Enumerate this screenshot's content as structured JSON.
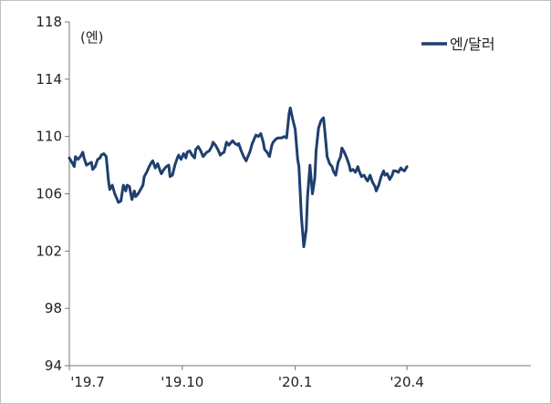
{
  "chart_data": {
    "type": "line",
    "title": "",
    "unit_label": "(엔)",
    "xlabel": "",
    "ylabel": "",
    "ylim": [
      94,
      118
    ],
    "y_ticks": [
      "118",
      "114",
      "110",
      "106",
      "102",
      "98",
      "94"
    ],
    "x_ticks": [
      "'19.7",
      "'19.10",
      "'20.1",
      "'20.4"
    ],
    "x_range_days": [
      0,
      376
    ],
    "x_tick_days": [
      0,
      92,
      184,
      275
    ],
    "legend_position": "top-right",
    "grid": false,
    "series": [
      {
        "name": "엔/달러",
        "color": "#1f3f6e",
        "points": [
          [
            0,
            108.5
          ],
          [
            2,
            108.2
          ],
          [
            4,
            107.9
          ],
          [
            5,
            108.6
          ],
          [
            7,
            108.4
          ],
          [
            9,
            108.6
          ],
          [
            11,
            108.9
          ],
          [
            12,
            108.5
          ],
          [
            14,
            108.0
          ],
          [
            16,
            108.1
          ],
          [
            18,
            108.2
          ],
          [
            19,
            107.7
          ],
          [
            21,
            107.9
          ],
          [
            23,
            108.4
          ],
          [
            25,
            108.5
          ],
          [
            26,
            108.7
          ],
          [
            28,
            108.8
          ],
          [
            30,
            108.6
          ],
          [
            32,
            106.8
          ],
          [
            33,
            106.3
          ],
          [
            35,
            106.6
          ],
          [
            37,
            106.0
          ],
          [
            39,
            105.6
          ],
          [
            40,
            105.4
          ],
          [
            42,
            105.5
          ],
          [
            44,
            106.6
          ],
          [
            46,
            106.2
          ],
          [
            47,
            106.6
          ],
          [
            49,
            106.5
          ],
          [
            51,
            105.6
          ],
          [
            53,
            106.2
          ],
          [
            54,
            105.8
          ],
          [
            56,
            106.0
          ],
          [
            58,
            106.3
          ],
          [
            60,
            106.6
          ],
          [
            61,
            107.2
          ],
          [
            63,
            107.5
          ],
          [
            65,
            107.9
          ],
          [
            67,
            108.2
          ],
          [
            68,
            108.3
          ],
          [
            70,
            107.8
          ],
          [
            72,
            108.1
          ],
          [
            74,
            107.6
          ],
          [
            75,
            107.4
          ],
          [
            77,
            107.7
          ],
          [
            79,
            107.9
          ],
          [
            81,
            108.0
          ],
          [
            82,
            107.2
          ],
          [
            84,
            107.3
          ],
          [
            86,
            108.0
          ],
          [
            88,
            108.5
          ],
          [
            89,
            108.7
          ],
          [
            91,
            108.4
          ],
          [
            93,
            108.8
          ],
          [
            95,
            108.5
          ],
          [
            96,
            108.9
          ],
          [
            98,
            109.0
          ],
          [
            100,
            108.7
          ],
          [
            102,
            108.5
          ],
          [
            103,
            109.1
          ],
          [
            105,
            109.3
          ],
          [
            107,
            109.0
          ],
          [
            109,
            108.6
          ],
          [
            110,
            108.7
          ],
          [
            112,
            108.9
          ],
          [
            114,
            109.0
          ],
          [
            116,
            109.3
          ],
          [
            117,
            109.6
          ],
          [
            119,
            109.4
          ],
          [
            121,
            109.1
          ],
          [
            123,
            108.7
          ],
          [
            124,
            108.8
          ],
          [
            126,
            108.9
          ],
          [
            128,
            109.6
          ],
          [
            130,
            109.4
          ],
          [
            131,
            109.5
          ],
          [
            133,
            109.7
          ],
          [
            135,
            109.5
          ],
          [
            137,
            109.4
          ],
          [
            138,
            109.5
          ],
          [
            140,
            109.0
          ],
          [
            142,
            108.6
          ],
          [
            144,
            108.3
          ],
          [
            145,
            108.5
          ],
          [
            147,
            108.9
          ],
          [
            149,
            109.5
          ],
          [
            151,
            109.9
          ],
          [
            152,
            110.1
          ],
          [
            154,
            110.0
          ],
          [
            156,
            110.2
          ],
          [
            158,
            109.6
          ],
          [
            159,
            109.1
          ],
          [
            161,
            108.9
          ],
          [
            163,
            108.6
          ],
          [
            165,
            109.4
          ],
          [
            166,
            109.6
          ],
          [
            168,
            109.8
          ],
          [
            170,
            109.9
          ],
          [
            172,
            109.9
          ],
          [
            173,
            109.9
          ],
          [
            175,
            110.0
          ],
          [
            177,
            109.9
          ],
          [
            179,
            111.6
          ],
          [
            180,
            112.0
          ],
          [
            182,
            111.2
          ],
          [
            184,
            110.5
          ],
          [
            186,
            108.4
          ],
          [
            187,
            107.9
          ],
          [
            189,
            104.5
          ],
          [
            191,
            102.3
          ],
          [
            193,
            103.5
          ],
          [
            194,
            105.8
          ],
          [
            196,
            108.0
          ],
          [
            198,
            106.0
          ],
          [
            200,
            107.1
          ],
          [
            201,
            109.0
          ],
          [
            203,
            110.6
          ],
          [
            205,
            111.1
          ],
          [
            207,
            111.3
          ],
          [
            208,
            110.5
          ],
          [
            210,
            108.6
          ],
          [
            212,
            108.1
          ],
          [
            214,
            107.9
          ],
          [
            215,
            107.6
          ],
          [
            217,
            107.3
          ],
          [
            219,
            108.2
          ],
          [
            221,
            108.6
          ],
          [
            222,
            109.2
          ],
          [
            224,
            108.9
          ],
          [
            226,
            108.5
          ],
          [
            228,
            108.0
          ],
          [
            229,
            107.6
          ],
          [
            231,
            107.7
          ],
          [
            233,
            107.5
          ],
          [
            235,
            107.9
          ],
          [
            236,
            107.6
          ],
          [
            238,
            107.2
          ],
          [
            240,
            107.3
          ],
          [
            242,
            107.0
          ],
          [
            243,
            106.9
          ],
          [
            245,
            107.3
          ],
          [
            247,
            106.8
          ],
          [
            249,
            106.5
          ],
          [
            250,
            106.2
          ],
          [
            252,
            106.6
          ],
          [
            254,
            107.2
          ],
          [
            256,
            107.6
          ],
          [
            257,
            107.3
          ],
          [
            259,
            107.4
          ],
          [
            261,
            107.0
          ],
          [
            263,
            107.3
          ],
          [
            264,
            107.6
          ],
          [
            266,
            107.6
          ],
          [
            268,
            107.5
          ],
          [
            270,
            107.8
          ],
          [
            271,
            107.7
          ],
          [
            273,
            107.6
          ],
          [
            275,
            107.9
          ]
        ]
      }
    ]
  }
}
